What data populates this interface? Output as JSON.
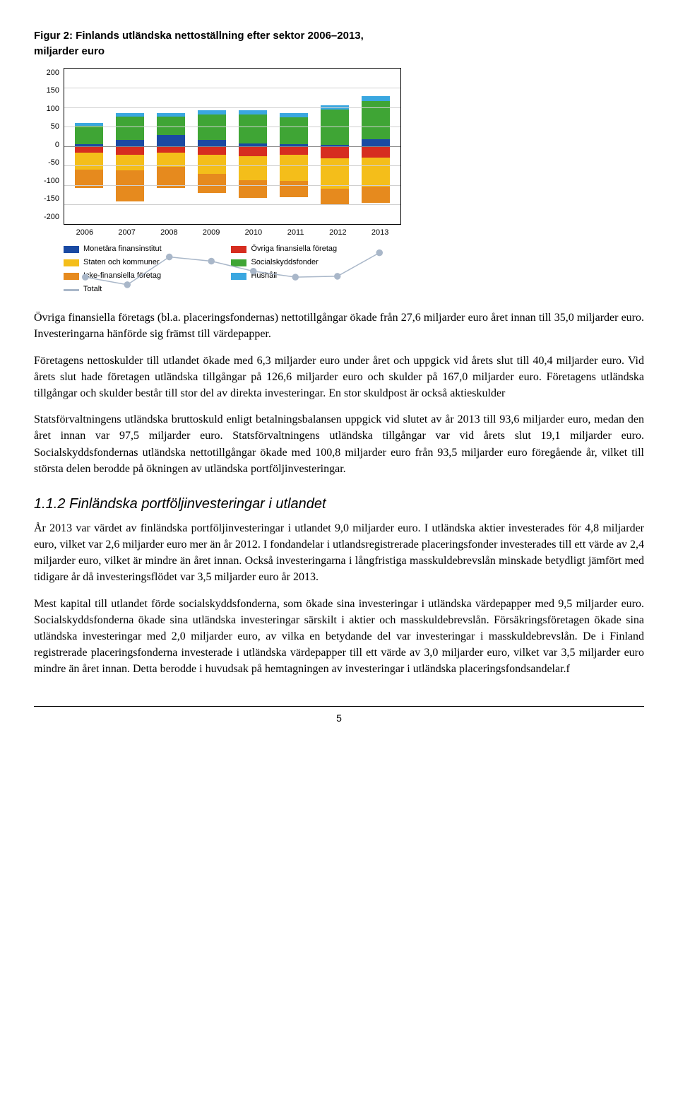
{
  "figure": {
    "title_line1": "Figur 2: Finlands utländska nettoställning efter sektor 2006–2013,",
    "title_line2": "miljarder euro",
    "chart": {
      "type": "stacked-bar",
      "ylim": [
        -200,
        200
      ],
      "yticks": [
        200,
        150,
        100,
        50,
        0,
        -50,
        -100,
        -150,
        -200
      ],
      "categories": [
        "2006",
        "2007",
        "2008",
        "2009",
        "2010",
        "2011",
        "2012",
        "2013"
      ],
      "colors": {
        "monetara": "#1a4aa3",
        "ovriga": "#d62d20",
        "staten": "#f4be1a",
        "social": "#3fa535",
        "icke": "#e68a1e",
        "hushall": "#3aa7e0",
        "total_line": "#a9b7c9",
        "grid": "#d0d0d0",
        "background": "#ffffff"
      },
      "series": {
        "pos": {
          "monetara": [
            4,
            15,
            28,
            16,
            6,
            4,
            3,
            18
          ],
          "ovriga": [
            0,
            0,
            0,
            0,
            0,
            0,
            0,
            0
          ],
          "staten": [
            0,
            0,
            0,
            0,
            0,
            0,
            0,
            0
          ],
          "social": [
            48,
            60,
            48,
            65,
            75,
            70,
            90,
            98
          ],
          "icke": [
            0,
            0,
            0,
            0,
            0,
            0,
            0,
            0
          ],
          "hushall": [
            8,
            10,
            8,
            10,
            11,
            10,
            12,
            12
          ]
        },
        "neg": {
          "monetara": [
            0,
            0,
            0,
            0,
            0,
            0,
            0,
            0
          ],
          "ovriga": [
            18,
            22,
            18,
            22,
            26,
            22,
            32,
            30
          ],
          "staten": [
            42,
            40,
            35,
            50,
            62,
            68,
            78,
            75
          ],
          "social": [
            0,
            0,
            0,
            0,
            0,
            0,
            0,
            0
          ],
          "icke": [
            48,
            80,
            55,
            48,
            45,
            42,
            42,
            42
          ],
          "hushall": [
            0,
            0,
            0,
            0,
            0,
            0,
            0,
            0
          ]
        }
      },
      "totals": [
        -48,
        -57,
        -24,
        -29,
        -41,
        -48,
        -47,
        -19
      ]
    },
    "legend": [
      {
        "key": "monetara",
        "label": "Monetära finansinstitut"
      },
      {
        "key": "ovriga",
        "label": "Övriga finansiella företag"
      },
      {
        "key": "staten",
        "label": "Staten och kommuner"
      },
      {
        "key": "social",
        "label": "Socialskyddsfonder"
      },
      {
        "key": "icke",
        "label": "Icke-finansiella företag"
      },
      {
        "key": "hushall",
        "label": "Hushåll"
      },
      {
        "key": "total",
        "label": "Totalt"
      }
    ]
  },
  "para1": "Övriga finansiella företags (bl.a. placeringsfondernas) nettotillgångar ökade från 27,6 miljarder euro året innan till 35,0 miljarder euro. Investeringarna hänförde sig främst till värdepapper.",
  "para2": "Företagens nettoskulder till utlandet ökade med 6,3 miljarder euro under året och uppgick vid årets slut till 40,4 miljarder euro. Vid årets slut hade företagen utländska tillgångar på 126,6 miljarder euro och skulder på 167,0 miljarder euro. Företagens utländska tillgångar och skulder består till stor del av direkta investeringar. En stor skuldpost är också aktieskulder",
  "para3": "Statsförvaltningens utländska bruttoskuld enligt betalningsbalansen uppgick vid slutet av år 2013 till 93,6 miljarder euro, medan den året innan var 97,5 miljarder euro. Statsförvaltningens utländska tillgångar var vid årets slut 19,1 miljarder euro. Socialskyddsfondernas utländska nettotillgångar ökade med 100,8 miljarder euro från 93,5 miljarder euro föregående år, vilket till största delen berodde på ökningen av utländska portföljinvesteringar.",
  "section_heading": "1.1.2 Finländska portföljinvesteringar i utlandet",
  "para4": "År 2013 var värdet av finländska portföljinvesteringar i utlandet 9,0 miljarder euro. I utländska aktier investerades för 4,8 miljarder euro, vilket var 2,6 miljarder euro mer än år 2012. I fondandelar i utlandsregistrerade placeringsfonder investerades till ett värde av 2,4 miljarder euro, vilket är mindre än året innan. Också investeringarna i långfristiga masskuldebrevslån minskade betydligt jämfört med tidigare år då investeringsflödet var 3,5 miljarder euro år 2013.",
  "para5": "Mest kapital till utlandet förde socialskyddsfonderna, som ökade sina investeringar i utländska värdepapper med 9,5 miljarder euro. Socialskyddsfonderna ökade sina utländska investeringar särskilt i aktier och masskuldebrevslån. Försäkringsföretagen ökade sina utländska investeringar med 2,0 miljarder euro, av vilka en betydande del var investeringar i masskuldebrevslån. De i Finland registrerade placeringsfonderna investerade i utländska värdepapper till ett värde av 3,0 miljarder euro, vilket var 3,5 miljarder euro mindre än året innan. Detta berodde i huvudsak på hemtagningen av investeringar i utländska placeringsfondsandelar.f",
  "page_number": "5"
}
